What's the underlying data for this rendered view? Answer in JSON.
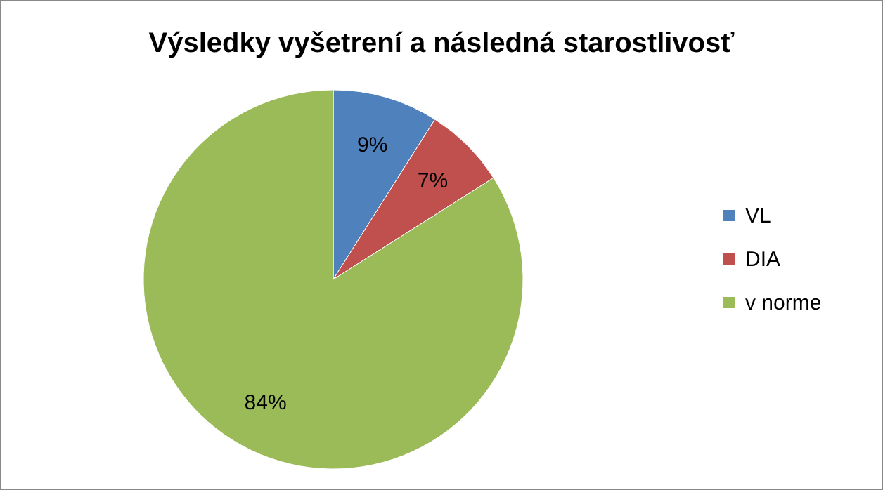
{
  "chart_data": {
    "type": "pie",
    "title": "Výsledky vyšetrení a následná starostlivosť",
    "categories": [
      "VL",
      "DIA",
      "v norme"
    ],
    "values": [
      9,
      7,
      84
    ],
    "colors": [
      "#4f81bd",
      "#c0504d",
      "#9bbb59"
    ],
    "value_labels": [
      "9%",
      "7%",
      "84%"
    ],
    "legend": "right"
  }
}
